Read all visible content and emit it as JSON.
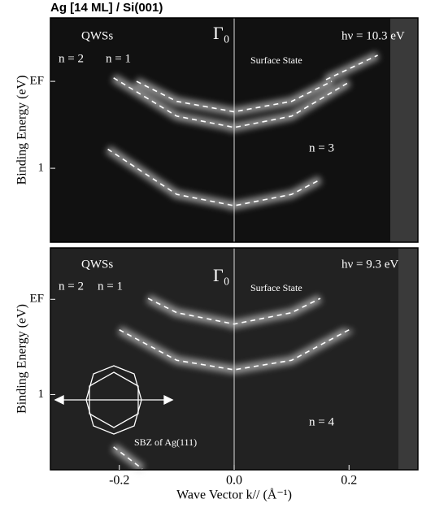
{
  "chart_data": [
    {
      "type": "image",
      "title": "Ag [14 ML] / Si(001)",
      "y_label": "Binding Energy (eV)",
      "xlim": [
        -0.32,
        0.32
      ],
      "ylim": [
        1.85,
        -0.73
      ],
      "yticks": [
        {
          "value": 0,
          "label": "EF"
        },
        1
      ],
      "annotations": [
        "QWSs",
        "n = 2",
        "n = 1",
        "Γ₀",
        "Surface State",
        "hν = 10.3 eV",
        "n = 3"
      ],
      "series": [
        {
          "color": "#ffffff",
          "x": [
            -0.17,
            -0.1,
            0,
            0.1,
            0.17
          ],
          "values": [
            0.0,
            0.23,
            0.35,
            0.23,
            0.0
          ]
        },
        {
          "color": "#ffffff",
          "x": [
            -0.21,
            -0.1,
            0,
            0.1,
            0.2
          ],
          "values": [
            -0.04,
            0.4,
            0.53,
            0.4,
            0.01
          ]
        },
        {
          "color": "#ffffff",
          "x": [
            -0.22,
            -0.1,
            0,
            0.1,
            0.15
          ],
          "values": [
            0.78,
            1.3,
            1.43,
            1.3,
            1.13
          ]
        },
        {
          "color": "#ffffff",
          "x": [
            0.16,
            0.25
          ],
          "values": [
            -0.02,
            -0.3
          ]
        }
      ]
    },
    {
      "type": "image",
      "y_label": "Binding Energy (eV)",
      "x_label": "Wave Vector k// (Å⁻¹)",
      "xlim": [
        -0.32,
        0.32
      ],
      "ylim": [
        1.79,
        -0.54
      ],
      "xticks": [
        -0.2,
        {
          "value": 0,
          "label": "0.0"
        },
        0.2
      ],
      "yticks": [
        {
          "value": 0,
          "label": "EF"
        },
        1
      ],
      "annotations": [
        "QWSs",
        "n = 2",
        "n = 1",
        "Γ₀",
        "Surface State",
        "hν = 9.3 eV",
        "n = 4",
        "SBZ of Ag(111)"
      ],
      "series": [
        {
          "color": "#ffffff",
          "x": [
            -0.15,
            -0.1,
            0,
            0.1,
            0.15
          ],
          "values": [
            -0.01,
            0.14,
            0.26,
            0.14,
            -0.01
          ]
        },
        {
          "color": "#ffffff",
          "x": [
            -0.2,
            -0.1,
            0,
            0.1,
            0.2
          ],
          "values": [
            0.32,
            0.64,
            0.74,
            0.64,
            0.32
          ]
        },
        {
          "color": "#ffffff",
          "x": [
            -0.21,
            -0.16
          ],
          "values": [
            1.55,
            1.78
          ]
        }
      ]
    }
  ]
}
